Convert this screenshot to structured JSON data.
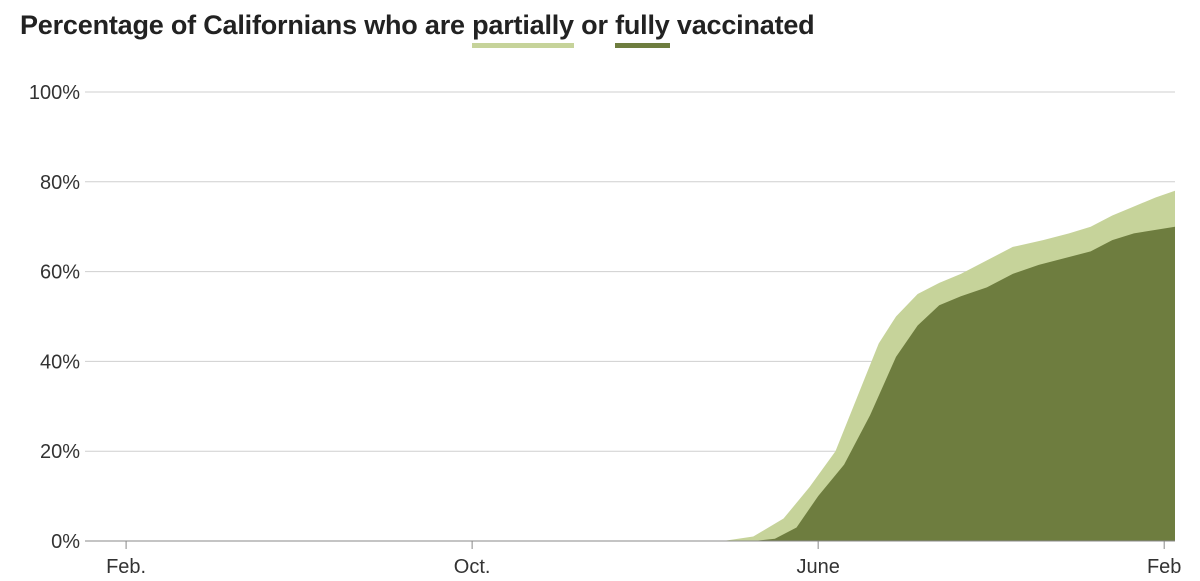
{
  "title": {
    "prefix": "Percentage of Californians who are ",
    "partial_word": "partially",
    "middle": " or ",
    "full_word": "fully",
    "suffix": " vaccinated"
  },
  "colors": {
    "partial": "#c6d39a",
    "full": "#6e7d3f",
    "grid": "#cfcfcf",
    "axis": "#888888"
  },
  "chart_data": {
    "type": "area",
    "x_ticks": [
      "Feb.",
      "Oct.",
      "June",
      "Feb"
    ],
    "y_ticks": [
      "0%",
      "20%",
      "40%",
      "60%",
      "80%",
      "100%"
    ],
    "ylim": [
      0,
      100
    ],
    "grid": true,
    "x_unit": "month index from Feb. (tick) = 0",
    "xlim": [
      -0.95,
      24.25
    ],
    "series": [
      {
        "name": "partially",
        "x": [
          13.8,
          14.5,
          15.2,
          15.8,
          16.4,
          16.9,
          17.4,
          17.8,
          18.3,
          18.8,
          19.3,
          19.9,
          20.5,
          21.2,
          21.8,
          22.3,
          22.8,
          23.3,
          23.8,
          24.25
        ],
        "values": [
          0,
          1,
          5,
          12,
          20,
          32,
          44,
          50,
          55,
          57.5,
          59.5,
          62.5,
          65.5,
          67,
          68.5,
          70,
          72.5,
          74.5,
          76.5,
          78
        ]
      },
      {
        "name": "fully",
        "x": [
          14.5,
          15.0,
          15.5,
          16.0,
          16.6,
          17.2,
          17.8,
          18.3,
          18.8,
          19.3,
          19.9,
          20.5,
          21.1,
          21.7,
          22.3,
          22.8,
          23.3,
          23.8,
          24.25
        ],
        "values": [
          0,
          0.5,
          3,
          10,
          17,
          28,
          41,
          48,
          52.5,
          54.5,
          56.5,
          59.5,
          61.5,
          63,
          64.5,
          67,
          68.5,
          69.3,
          70
        ]
      }
    ]
  }
}
